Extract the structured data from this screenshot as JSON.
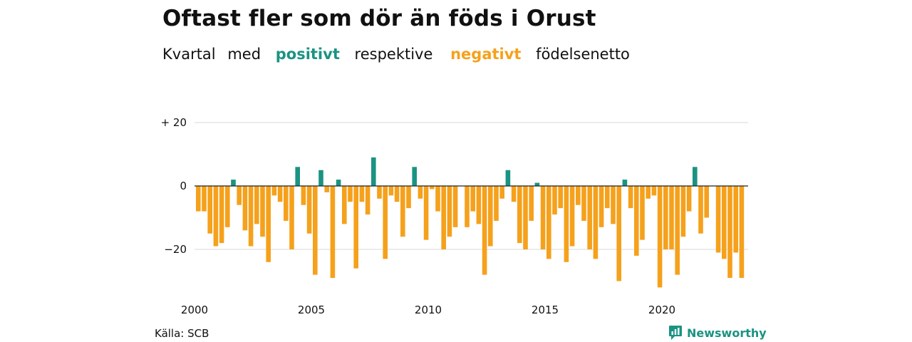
{
  "title": "Oftast fler som dör än föds i Orust",
  "subtitle": {
    "part1": "Kvartal",
    "part2": "med",
    "positive_word": "positivt",
    "part3": "respektive",
    "negative_word": "negativt",
    "part4": "födelsenetto"
  },
  "source": "Källa: SCB",
  "brand": "Newsworthy",
  "colors": {
    "positive": "#1a9382",
    "negative": "#f5a11c",
    "grid": "#d9d9d9",
    "zero": "#222222"
  },
  "chart_data": {
    "type": "bar",
    "title": "Oftast fler som dör än föds i Orust",
    "x_start_year": 2000,
    "periods_per_year": 4,
    "x_tick_labels": [
      "2000",
      "2005",
      "2010",
      "2015",
      "2020"
    ],
    "y_tick_labels": [
      "+ 20",
      "0",
      "−20"
    ],
    "y_ticks": [
      20,
      0,
      -20
    ],
    "ylim": [
      -33,
      20
    ],
    "grid": true,
    "values": [
      -8,
      -8,
      -15,
      -19,
      -18,
      -13,
      2,
      -6,
      -14,
      -19,
      -12,
      -16,
      -24,
      -3,
      -5,
      -11,
      -20,
      6,
      -6,
      -15,
      -28,
      5,
      -2,
      -29,
      2,
      -12,
      -5,
      -26,
      -5,
      -9,
      9,
      -4,
      -23,
      -3,
      -5,
      -16,
      -7,
      6,
      -4,
      -17,
      -1,
      -8,
      -20,
      -16,
      -13,
      0,
      -13,
      -8,
      -12,
      -28,
      -19,
      -11,
      -4,
      5,
      -5,
      -18,
      -20,
      -11,
      1,
      -20,
      -23,
      -9,
      -7,
      -24,
      -19,
      -6,
      -11,
      -20,
      -23,
      -13,
      -7,
      -12,
      -30,
      2,
      -7,
      -22,
      -17,
      -4,
      -3,
      -32,
      -20,
      -20,
      -28,
      -16,
      -8,
      6,
      -15,
      -10,
      0,
      -21,
      -23,
      -29,
      -21,
      -29
    ]
  }
}
